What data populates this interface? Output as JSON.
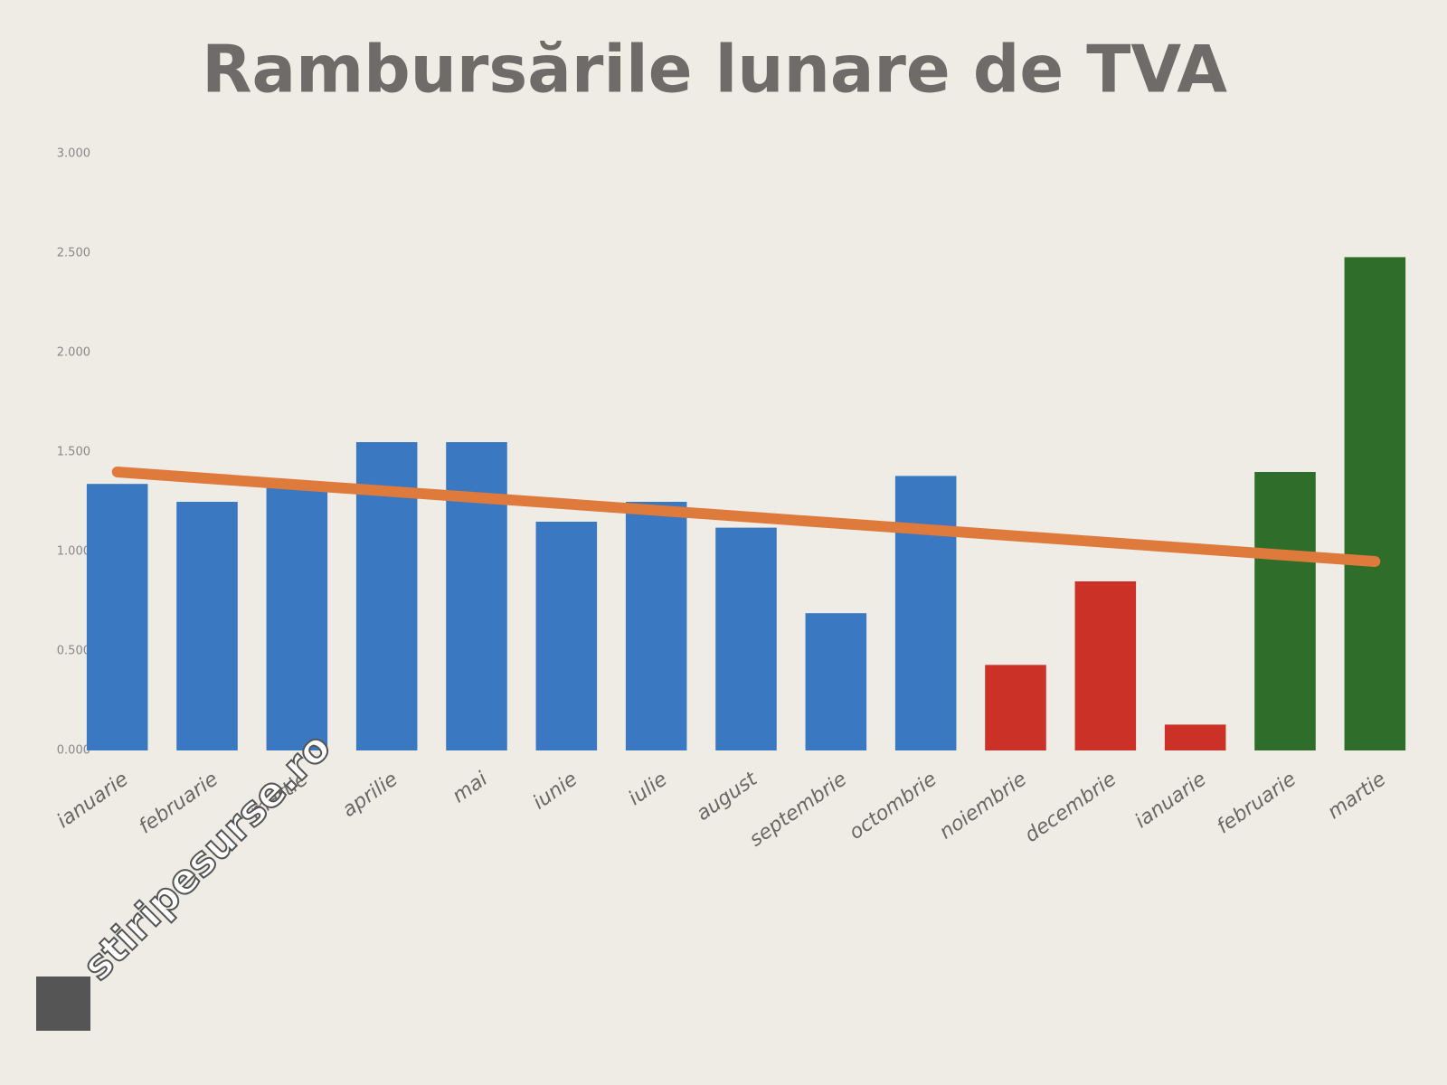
{
  "chart_data": {
    "type": "bar",
    "title": "Rambursările lunare de TVA",
    "categories": [
      "ianuarie",
      "februarie",
      "martie",
      "aprilie",
      "mai",
      "iunie",
      "iulie",
      "august",
      "septembrie",
      "octombrie",
      "noiembrie",
      "decembrie",
      "ianuarie",
      "februarie",
      "martie"
    ],
    "values": [
      1340,
      1250,
      1340,
      1550,
      1550,
      1150,
      1250,
      1120,
      690,
      1380,
      430,
      850,
      130,
      1400,
      2480
    ],
    "colors": [
      "#3a78c2",
      "#3a78c2",
      "#3a78c2",
      "#3a78c2",
      "#3a78c2",
      "#3a78c2",
      "#3a78c2",
      "#3a78c2",
      "#3a78c2",
      "#3a78c2",
      "#cc3128",
      "#cc3128",
      "#cc3128",
      "#2f6e2a",
      "#2f6e2a"
    ],
    "ylim": [
      0,
      3000
    ],
    "yticks": [
      {
        "value": 0,
        "label": "0.000"
      },
      {
        "value": 500,
        "label": "0.500"
      },
      {
        "value": 1000,
        "label": "1.000"
      },
      {
        "value": 1500,
        "label": "1.500"
      },
      {
        "value": 2000,
        "label": "2.000"
      },
      {
        "value": 2500,
        "label": "2.500"
      },
      {
        "value": 3000,
        "label": "3.000"
      }
    ],
    "trend": {
      "color": "#de7a3c",
      "values": [
        1400,
        950
      ]
    },
    "watermark": "stiripesurse.ro"
  }
}
